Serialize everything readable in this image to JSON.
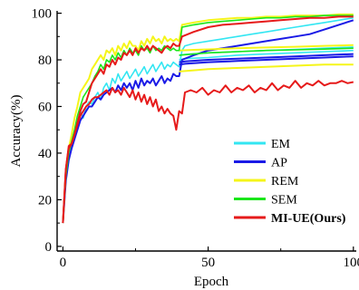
{
  "chart_data": {
    "type": "line",
    "xlabel": "Epoch",
    "ylabel": "Accuracy(%)",
    "xlim": [
      -2,
      101
    ],
    "ylim": [
      -2,
      101
    ],
    "xticks": [
      "0",
      "50",
      "100"
    ],
    "yticks": [
      "0",
      "20",
      "40",
      "60",
      "80",
      "100"
    ],
    "grid": false,
    "legend_position": "lower-right",
    "series": [
      {
        "name": "EM",
        "color": "#33E6F2",
        "width": 1.6,
        "lines": [
          {
            "x": [
              0,
              1,
              2,
              3,
              4,
              5,
              6,
              7,
              8,
              9,
              10,
              11,
              12,
              13,
              14,
              15,
              16,
              17,
              18,
              19,
              20,
              21,
              22,
              23,
              24,
              25,
              26,
              27,
              28,
              29,
              30,
              31,
              32,
              33,
              34,
              35,
              36,
              37,
              38,
              39,
              40,
              41,
              42,
              45,
              50,
              55,
              60,
              65,
              70,
              75,
              80,
              85,
              90,
              95,
              100
            ],
            "y": [
              10,
              30,
              38,
              44,
              48,
              52,
              58,
              55,
              60,
              62,
              61,
              64,
              66,
              63,
              68,
              70,
              67,
              72,
              70,
              74,
              71,
              73,
              75,
              72,
              74,
              76,
              73,
              75,
              77,
              74,
              76,
              78,
              75,
              77,
              79,
              76,
              78,
              77,
              79,
              78,
              77,
              84,
              86,
              87,
              88,
              89,
              90,
              91,
              92,
              93,
              94,
              95,
              96,
              97,
              98
            ]
          },
          {
            "x": [
              40,
              42,
              50,
              60,
              70,
              80,
              90,
              100
            ],
            "y": [
              80,
              80.5,
              81,
              82,
              82.5,
              83,
              83.5,
              84
            ]
          },
          {
            "x": [
              40,
              42,
              50,
              60,
              70,
              80,
              90,
              100
            ],
            "y": [
              82,
              82.3,
              83,
              83.5,
              84,
              84.5,
              85,
              85.5
            ]
          }
        ]
      },
      {
        "name": "AP",
        "color": "#1A1AE6",
        "width": 2.0,
        "lines": [
          {
            "x": [
              0,
              1,
              2,
              3,
              4,
              5,
              6,
              7,
              8,
              9,
              10,
              11,
              12,
              13,
              14,
              15,
              16,
              17,
              18,
              19,
              20,
              21,
              22,
              23,
              24,
              25,
              26,
              27,
              28,
              29,
              30,
              31,
              32,
              33,
              34,
              35,
              36,
              37,
              38,
              39,
              40,
              41,
              45,
              50,
              55,
              60,
              65,
              70,
              75,
              80,
              85,
              90,
              95,
              100
            ],
            "y": [
              10,
              28,
              37,
              42,
              46,
              50,
              54,
              56,
              58,
              60,
              60,
              62,
              64,
              63,
              65,
              66,
              67,
              68,
              66,
              69,
              67,
              70,
              68,
              70,
              67,
              71,
              68,
              72,
              69,
              71,
              70,
              72,
              69,
              71,
              73,
              70,
              72,
              71,
              74,
              73,
              73,
              80,
              82,
              84,
              85,
              86,
              87,
              88,
              89,
              90,
              91,
              93,
              95,
              97
            ]
          },
          {
            "x": [
              40,
              42,
              50,
              60,
              70,
              80,
              90,
              100
            ],
            "y": [
              79,
              79.3,
              80,
              80.5,
              81,
              81.5,
              82,
              82.5
            ]
          },
          {
            "x": [
              40,
              42,
              50,
              60,
              70,
              80,
              90,
              100
            ],
            "y": [
              78,
              78.3,
              79,
              79.5,
              80,
              80.5,
              81,
              81.5
            ]
          }
        ]
      },
      {
        "name": "REM",
        "color": "#F5F51A",
        "width": 2.0,
        "lines": [
          {
            "x": [
              0,
              1,
              2,
              3,
              4,
              5,
              6,
              7,
              8,
              9,
              10,
              11,
              12,
              13,
              14,
              15,
              16,
              17,
              18,
              19,
              20,
              21,
              22,
              23,
              24,
              25,
              26,
              27,
              28,
              29,
              30,
              31,
              32,
              33,
              34,
              35,
              36,
              37,
              38,
              39,
              40,
              41,
              45,
              50,
              55,
              60,
              65,
              70,
              75,
              80,
              85,
              90,
              95,
              100
            ],
            "y": [
              10,
              32,
              42,
              48,
              55,
              60,
              66,
              68,
              70,
              72,
              76,
              78,
              80,
              82,
              80,
              84,
              83,
              85,
              82,
              86,
              84,
              87,
              85,
              88,
              86,
              86,
              84,
              88,
              86,
              89,
              87,
              90,
              88,
              89,
              87,
              90,
              88,
              89,
              88,
              89,
              88,
              95,
              96,
              97,
              97.5,
              98,
              98,
              98.5,
              98.5,
              99,
              99,
              99,
              99.5,
              99.5
            ]
          },
          {
            "x": [
              40,
              45,
              50,
              60,
              70,
              80,
              90,
              100
            ],
            "y": [
              75,
              75.5,
              76,
              76.5,
              77,
              77.5,
              78,
              78
            ]
          },
          {
            "x": [
              40,
              45,
              50,
              60,
              70,
              80,
              90,
              100
            ],
            "y": [
              84,
              84.3,
              84.5,
              85,
              85.3,
              85.6,
              86,
              86.3
            ]
          }
        ]
      },
      {
        "name": "SEM",
        "color": "#1AE61A",
        "width": 1.6,
        "lines": [
          {
            "x": [
              0,
              1,
              2,
              3,
              4,
              5,
              6,
              7,
              8,
              9,
              10,
              11,
              12,
              13,
              14,
              15,
              16,
              17,
              18,
              19,
              20,
              21,
              22,
              23,
              24,
              25,
              26,
              27,
              28,
              29,
              30,
              31,
              32,
              33,
              34,
              35,
              36,
              37,
              38,
              39,
              40,
              41,
              45,
              50,
              55,
              60,
              65,
              70,
              75,
              80,
              85,
              90,
              95,
              100
            ],
            "y": [
              10,
              30,
              40,
              45,
              50,
              56,
              60,
              64,
              66,
              68,
              70,
              73,
              75,
              78,
              76,
              80,
              79,
              82,
              80,
              83,
              81,
              84,
              82,
              85,
              83,
              84,
              82,
              86,
              84,
              85,
              83,
              86,
              84,
              85,
              84,
              86,
              85,
              84,
              85,
              84,
              84,
              94,
              95,
              96,
              96.5,
              97,
              97.5,
              98,
              98,
              98.5,
              98.5,
              99,
              99,
              99
            ]
          },
          {
            "x": [
              40,
              45,
              50,
              60,
              70,
              80,
              90,
              100
            ],
            "y": [
              82,
              82.5,
              83,
              83.5,
              84,
              84.3,
              84.6,
              85
            ]
          }
        ]
      },
      {
        "name": "MI-UE(Ours)",
        "color": "#E61A1A",
        "width": 2.0,
        "lines": [
          {
            "x": [
              0,
              1,
              2,
              3,
              4,
              5,
              6,
              7,
              8,
              9,
              10,
              11,
              12,
              13,
              14,
              15,
              16,
              17,
              18,
              19,
              20,
              21,
              22,
              23,
              24,
              25,
              26,
              27,
              28,
              29,
              30,
              31,
              32,
              33,
              34,
              35,
              36,
              37,
              38,
              39,
              40,
              41,
              45,
              50,
              55,
              60,
              65,
              70,
              75,
              80,
              85,
              90,
              95,
              100
            ],
            "y": [
              10,
              33,
              43,
              44,
              48,
              53,
              58,
              61,
              62,
              66,
              70,
              72,
              74,
              76,
              74,
              78,
              77,
              80,
              78,
              81,
              80,
              83,
              82,
              84,
              82,
              85,
              83,
              85,
              84,
              86,
              84,
              86,
              85,
              84,
              83,
              85,
              86,
              85,
              87,
              86,
              86,
              90,
              92,
              94,
              95,
              95.5,
              96,
              96.5,
              97,
              97.5,
              98,
              98,
              98.5,
              98.5
            ]
          },
          {
            "x": [
              0,
              1,
              2,
              3,
              4,
              5,
              6,
              7,
              8,
              9,
              10,
              11,
              12,
              13,
              14,
              15,
              16,
              17,
              18,
              19,
              20,
              21,
              22,
              23,
              24,
              25,
              26,
              27,
              28,
              29,
              30,
              31,
              32,
              33,
              34,
              35,
              36,
              37,
              38,
              39,
              40,
              41,
              42,
              44,
              46,
              48,
              50,
              52,
              54,
              56,
              58,
              60,
              62,
              64,
              66,
              68,
              70,
              72,
              74,
              76,
              78,
              80,
              82,
              84,
              86,
              88,
              90,
              92,
              94,
              96,
              98,
              100
            ],
            "y": [
              10,
              33,
              42,
              44,
              48,
              52,
              56,
              58,
              60,
              61,
              63,
              64,
              64,
              65,
              66,
              67,
              65,
              68,
              66,
              67,
              65,
              68,
              66,
              64,
              67,
              63,
              66,
              62,
              65,
              61,
              64,
              60,
              63,
              58,
              60,
              57,
              59,
              57,
              56,
              50,
              58,
              57,
              66,
              67,
              66,
              68,
              65,
              67,
              66,
              69,
              66,
              68,
              67,
              69,
              66,
              68,
              67,
              70,
              67,
              69,
              68,
              71,
              68,
              70,
              69,
              71,
              69,
              70,
              70,
              71,
              70,
              70.5
            ]
          }
        ]
      }
    ]
  }
}
